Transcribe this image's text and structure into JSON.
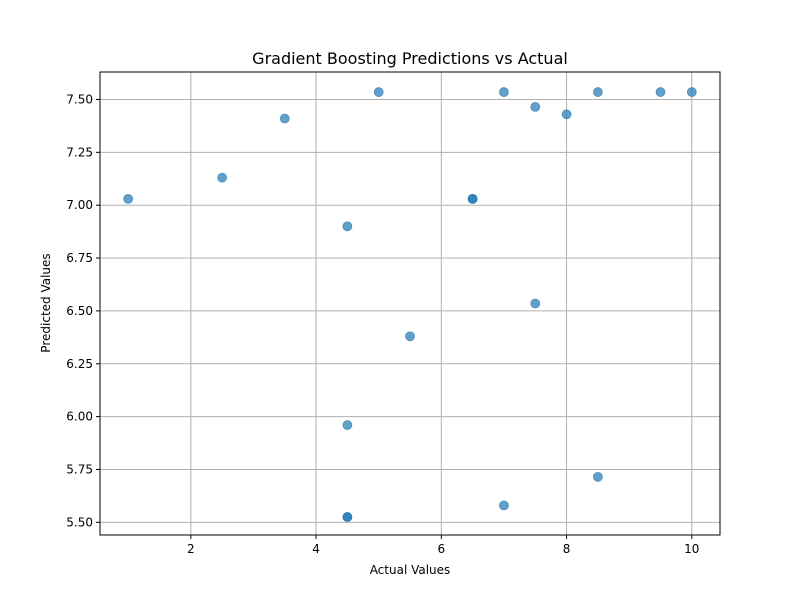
{
  "chart_data": {
    "type": "scatter",
    "title": "Gradient Boosting Predictions vs Actual",
    "xlabel": "Actual Values",
    "ylabel": "Predicted Values",
    "xlim": [
      0.55,
      10.45
    ],
    "ylim": [
      5.44,
      7.63
    ],
    "xticks": [
      2,
      4,
      6,
      8,
      10
    ],
    "xtick_labels": [
      "2",
      "4",
      "6",
      "8",
      "10"
    ],
    "yticks": [
      5.5,
      5.75,
      6.0,
      6.25,
      6.5,
      6.75,
      7.0,
      7.25,
      7.5
    ],
    "ytick_labels": [
      "5.50",
      "5.75",
      "6.00",
      "6.25",
      "6.50",
      "6.75",
      "7.00",
      "7.25",
      "7.50"
    ],
    "grid": true,
    "marker_color": "#1f77b4",
    "marker_alpha": 0.7,
    "series": [
      {
        "points": [
          {
            "x": 1.0,
            "y": 7.03
          },
          {
            "x": 2.5,
            "y": 7.13
          },
          {
            "x": 3.5,
            "y": 7.41
          },
          {
            "x": 4.5,
            "y": 6.9
          },
          {
            "x": 4.5,
            "y": 5.96
          },
          {
            "x": 4.5,
            "y": 5.525
          },
          {
            "x": 4.5,
            "y": 5.525
          },
          {
            "x": 5.0,
            "y": 7.535
          },
          {
            "x": 5.5,
            "y": 6.38
          },
          {
            "x": 6.5,
            "y": 7.03
          },
          {
            "x": 6.5,
            "y": 7.03
          },
          {
            "x": 7.0,
            "y": 7.535
          },
          {
            "x": 7.0,
            "y": 5.58
          },
          {
            "x": 7.5,
            "y": 7.465
          },
          {
            "x": 7.5,
            "y": 6.535
          },
          {
            "x": 8.0,
            "y": 7.43
          },
          {
            "x": 8.5,
            "y": 7.535
          },
          {
            "x": 8.5,
            "y": 5.715
          },
          {
            "x": 9.5,
            "y": 7.535
          },
          {
            "x": 10.0,
            "y": 7.535
          }
        ]
      }
    ]
  }
}
